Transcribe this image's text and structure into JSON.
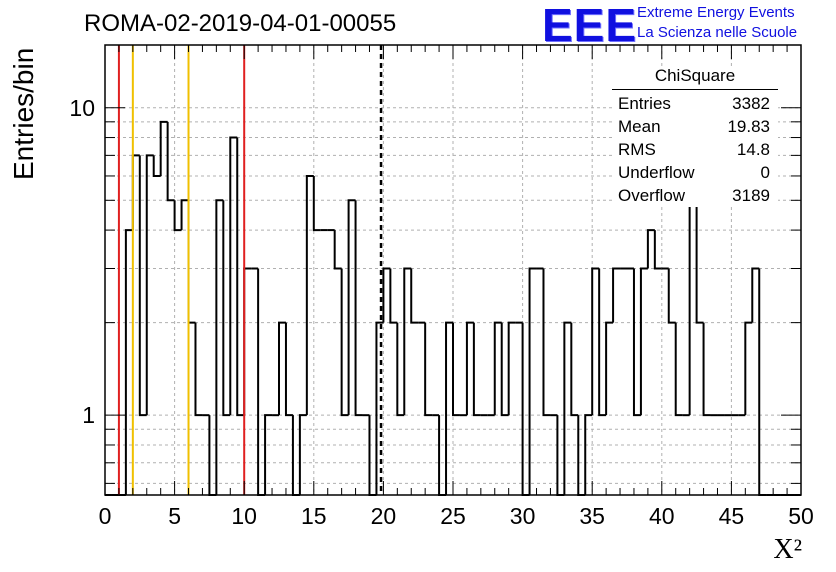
{
  "header": {
    "title": "ROMA-02-2019-04-01-00055",
    "logo_text": "EEE",
    "logo_line1": "Extreme Energy Events",
    "logo_line2": "La Scienza nelle Scuole"
  },
  "stats": {
    "title": "ChiSquare",
    "rows": [
      {
        "label": "Entries",
        "value": "3382"
      },
      {
        "label": "Mean",
        "value": "19.83"
      },
      {
        "label": "RMS",
        "value": "14.8"
      },
      {
        "label": "Underflow",
        "value": "0"
      },
      {
        "label": "Overflow",
        "value": "3189"
      }
    ]
  },
  "colors": {
    "red_line": "#e02020",
    "yellow_line": "#f0c000",
    "histogram": "#000000",
    "grid": "#b0b0b0",
    "logo": "#1010e0"
  },
  "chart_data": {
    "type": "histogram",
    "xlabel": "X²",
    "ylabel": "Entries/bin",
    "xlim": [
      0,
      50
    ],
    "ylim": [
      0.55,
      16
    ],
    "yscale": "log",
    "grid": true,
    "bin_width": 0.5,
    "bin_start": 0,
    "x_ticks": [
      "0",
      "5",
      "10",
      "15",
      "20",
      "25",
      "30",
      "35",
      "40",
      "45",
      "50"
    ],
    "y_ticks": [
      "1",
      "10"
    ],
    "values": [
      0,
      0,
      0,
      4,
      7,
      1,
      7,
      6,
      9,
      5,
      4,
      5,
      2,
      1,
      1,
      0,
      5,
      1,
      8,
      1,
      3,
      3,
      0,
      1,
      1,
      2,
      1,
      0,
      1,
      6,
      4,
      4,
      4,
      3,
      1,
      5,
      1,
      1,
      0,
      2,
      3,
      2,
      1,
      3,
      2,
      2,
      1,
      1,
      0,
      2,
      1,
      1,
      2,
      1,
      1,
      1,
      2,
      1,
      2,
      2,
      0,
      3,
      3,
      1,
      1,
      0,
      2,
      1,
      0,
      1,
      3,
      1,
      2,
      3,
      3,
      3,
      1,
      3,
      4,
      3,
      3,
      2,
      1,
      1,
      7,
      2,
      1,
      1,
      1,
      1,
      1,
      1,
      2,
      3,
      0,
      0,
      0,
      0,
      0,
      0
    ],
    "vertical_lines": [
      {
        "x": 1,
        "color": "red",
        "style": "solid"
      },
      {
        "x": 2,
        "color": "yellow",
        "style": "solid"
      },
      {
        "x": 6,
        "color": "yellow",
        "style": "solid"
      },
      {
        "x": 10,
        "color": "red",
        "style": "solid"
      },
      {
        "x": 19.83,
        "color": "black",
        "style": "dashed"
      }
    ]
  }
}
